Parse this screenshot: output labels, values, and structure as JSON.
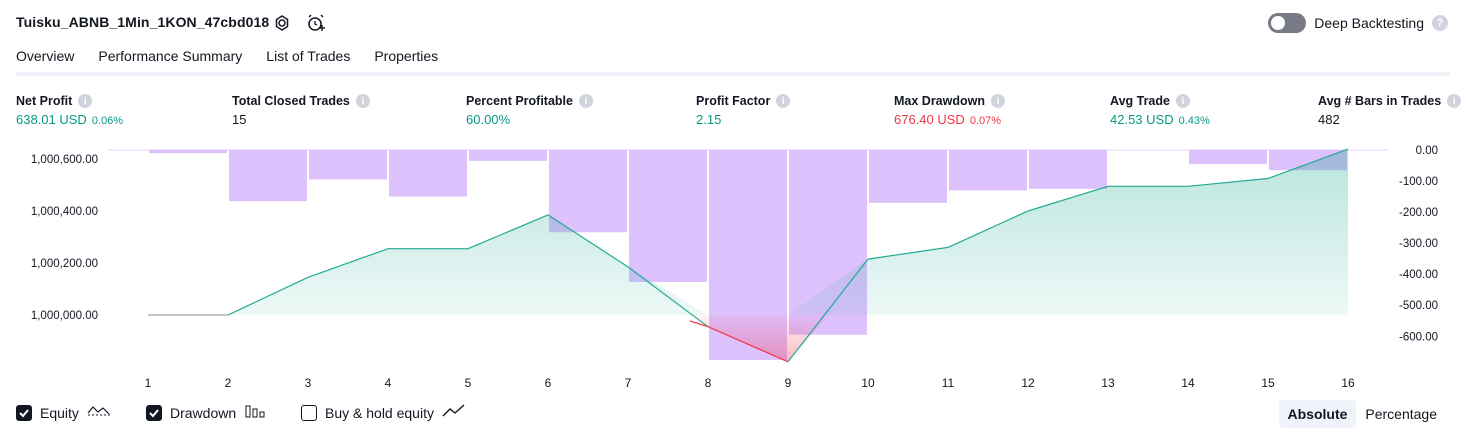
{
  "header": {
    "strategy_name": "Tuisku_ABNB_1Min_1KON_47cbd018",
    "deep_backtesting_label": "Deep Backtesting",
    "deep_backtesting_help": "?"
  },
  "tabs": [
    {
      "label": "Overview",
      "active": true
    },
    {
      "label": "Performance Summary",
      "active": false
    },
    {
      "label": "List of Trades",
      "active": false
    },
    {
      "label": "Properties",
      "active": false
    }
  ],
  "stats": [
    {
      "label": "Net Profit",
      "value": "638.01 USD",
      "pct": "0.06%",
      "color": "green"
    },
    {
      "label": "Total Closed Trades",
      "value": "15",
      "pct": "",
      "color": "dark"
    },
    {
      "label": "Percent Profitable",
      "value": "60.00%",
      "pct": "",
      "color": "green"
    },
    {
      "label": "Profit Factor",
      "value": "2.15",
      "pct": "",
      "color": "green"
    },
    {
      "label": "Max Drawdown",
      "value": "676.40 USD",
      "pct": "0.07%",
      "color": "red"
    },
    {
      "label": "Avg Trade",
      "value": "42.53 USD",
      "pct": "0.43%",
      "color": "green"
    },
    {
      "label": "Avg # Bars in Trades",
      "value": "482",
      "pct": "",
      "color": "dark"
    }
  ],
  "chart_data": {
    "type": "line",
    "x": [
      1,
      2,
      3,
      4,
      5,
      6,
      7,
      8,
      9,
      10,
      11,
      12,
      13,
      14,
      15,
      16
    ],
    "series": [
      {
        "name": "Equity",
        "type": "area",
        "values": [
          1000000,
          1000000,
          1000145,
          1000255,
          1000255,
          1000385,
          1000185,
          999955,
          999820,
          1000215,
          1000260,
          1000400,
          1000495,
          1000495,
          1000525,
          1000638
        ]
      },
      {
        "name": "Drawdown",
        "type": "bar",
        "values": [
          0,
          -10,
          -165,
          -95,
          -150,
          -35,
          -265,
          -425,
          -676.4,
          -595,
          -170,
          -130,
          -125,
          0,
          -45,
          -65
        ]
      }
    ],
    "ylim_left": [
      999820,
      1000640
    ],
    "ylim_right": [
      -676.4,
      0
    ],
    "left_ticks": [
      "1,000,600.00",
      "1,000,400.00",
      "1,000,200.00",
      "1,000,000.00"
    ],
    "right_ticks": [
      "0.00",
      "-100.00",
      "-200.00",
      "-300.00",
      "-400.00",
      "-500.00",
      "-600.00"
    ],
    "colors": {
      "equity_line": "#22ab94",
      "equity_fill": "#22ab94",
      "loss_line": "#f23645",
      "drawdown_bar": "#d7b6fd",
      "baseline": "#b2b5be"
    }
  },
  "legend": [
    {
      "label": "Equity",
      "checked": true,
      "icon": "equity-icon"
    },
    {
      "label": "Drawdown",
      "checked": true,
      "icon": "drawdown-icon"
    },
    {
      "label": "Buy & hold equity",
      "checked": false,
      "icon": "buy-hold-icon"
    }
  ],
  "view_mode": {
    "absolute": "Absolute",
    "percentage": "Percentage",
    "selected": "Absolute"
  }
}
